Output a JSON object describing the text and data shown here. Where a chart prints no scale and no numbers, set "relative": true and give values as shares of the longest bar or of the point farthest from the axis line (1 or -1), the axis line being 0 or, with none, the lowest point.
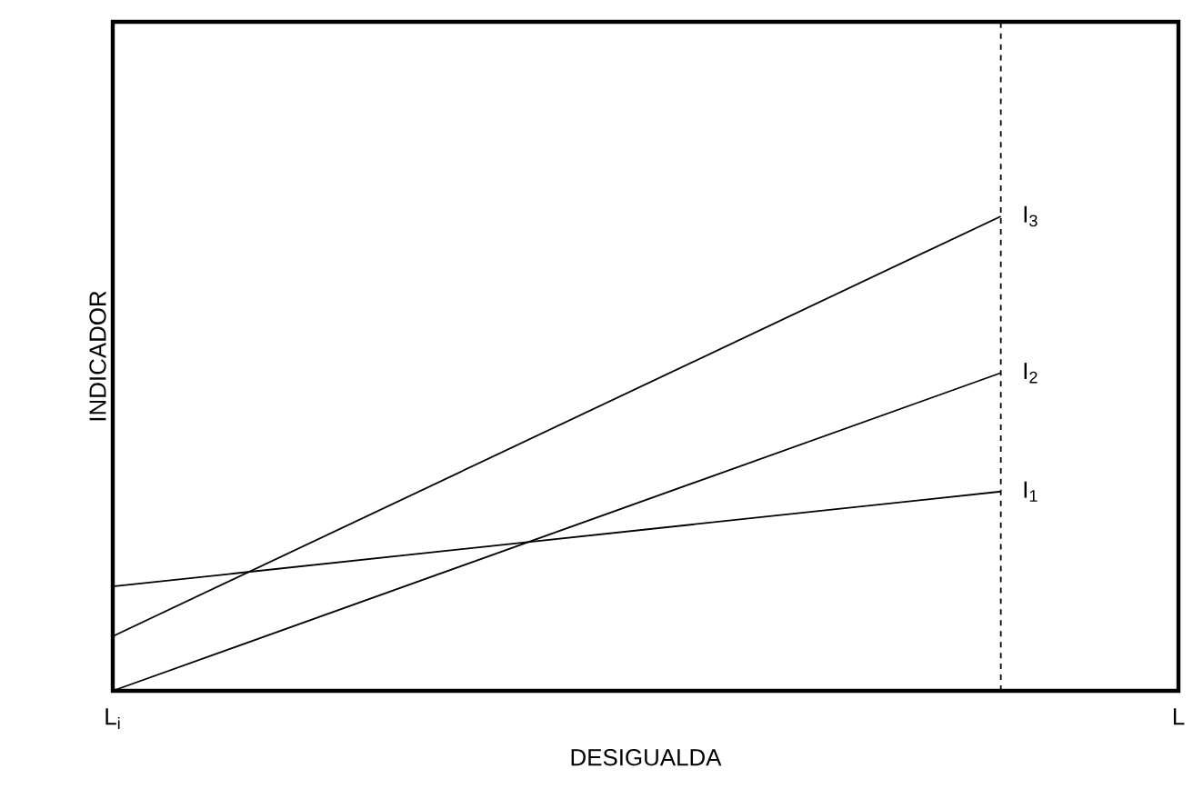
{
  "chart_data": {
    "type": "line",
    "relative": true,
    "xlabel": "DESIGUALDA",
    "ylabel": "INDICADOR",
    "categories": [
      "L$_{i}$",
      null,
      null,
      null,
      null,
      null,
      "L"
    ],
    "series": [
      {
        "name": "I$_{1}$",
        "color": "#000000",
        "values": [
          0.22,
          null,
          null,
          null,
          null,
          0.42,
          null
        ]
      },
      {
        "name": "I$_{2}$",
        "color": "#000000",
        "values": [
          0,
          null,
          null,
          null,
          null,
          0.67,
          null
        ]
      },
      {
        "name": "I$_{3}$",
        "color": "#000000",
        "values": [
          0.115,
          null,
          null,
          null,
          null,
          1,
          null
        ]
      }
    ]
  }
}
